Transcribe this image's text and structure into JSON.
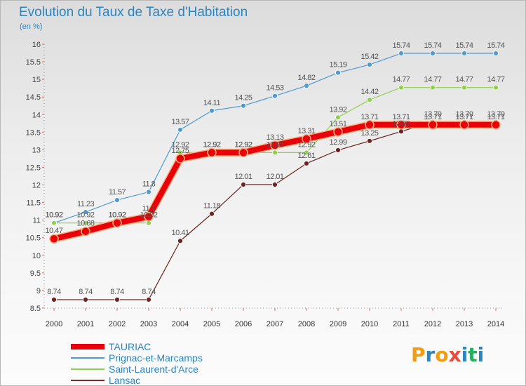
{
  "header": {
    "title": "Evolution du Taux de Taxe d'Habitation",
    "subtitle": "(en %)"
  },
  "brand": {
    "text": "ProXiti",
    "letters": [
      "P",
      "r",
      "o",
      "x",
      "i",
      "t",
      "i"
    ],
    "colors": [
      "#f39c12",
      "#2e86c1",
      "#f39c12",
      "#e74c3c",
      "#2e86c1",
      "#27ae60",
      "#2e86c1"
    ]
  },
  "chart_data": {
    "type": "line",
    "title": "Evolution du Taux de Taxe d'Habitation",
    "subtitle": "(en %)",
    "xlabel": "",
    "ylabel": "",
    "x": [
      2000,
      2001,
      2002,
      2003,
      2004,
      2005,
      2006,
      2007,
      2008,
      2009,
      2010,
      2011,
      2012,
      2013,
      2014
    ],
    "ylim": [
      8.5,
      16
    ],
    "yticks": [
      8.5,
      9,
      9.5,
      10,
      10.5,
      11,
      11.5,
      12,
      12.5,
      13,
      13.5,
      14,
      14.5,
      15,
      15.5,
      16
    ],
    "ytick_labels": [
      "8.5",
      "9",
      "9.5",
      "10",
      "10.5",
      "11",
      "11.5",
      "12",
      "12.5",
      "13",
      "13.5",
      "14",
      "14.5",
      "15",
      "15.5",
      "16"
    ],
    "grid": "none",
    "legend_position": "bottom-left",
    "series": [
      {
        "name": "TAURIAC",
        "color": "#e8000b",
        "values": [
          10.47,
          10.68,
          10.92,
          11.1,
          12.75,
          12.92,
          12.92,
          13.13,
          13.31,
          13.51,
          13.71,
          13.71,
          13.71,
          13.71,
          13.71
        ],
        "labels": [
          "10.47",
          "10.68",
          "10.92",
          "11.1",
          "12.75",
          "12.92",
          "12.92",
          "13.13",
          "13.31",
          "13.51",
          "13.71",
          "13.71",
          "13.71",
          "13.71",
          "13.71"
        ]
      },
      {
        "name": "Prignac-et-Marcamps",
        "color": "#4f9bd0",
        "values": [
          10.92,
          11.23,
          11.57,
          11.8,
          13.57,
          14.11,
          14.25,
          14.53,
          14.82,
          15.19,
          15.42,
          15.74,
          15.74,
          15.74,
          15.74
        ],
        "labels": [
          "10.92",
          "11.23",
          "11.57",
          "11.8",
          "13.57",
          "14.11",
          "14.25",
          "14.53",
          "14.82",
          "15.19",
          "15.42",
          "15.74",
          "15.74",
          "15.74",
          "15.74"
        ]
      },
      {
        "name": "Saint-Laurent-d'Arce",
        "color": "#8fd14f",
        "values": [
          10.92,
          10.92,
          10.92,
          10.92,
          12.92,
          12.92,
          12.92,
          12.92,
          12.92,
          13.92,
          14.42,
          14.77,
          14.77,
          14.77,
          14.77
        ],
        "labels": [
          "10.92",
          "10.92",
          "10.92",
          "10.92",
          "12.92",
          "12.92",
          "12.92",
          "12.92",
          "12.92",
          "13.92",
          "14.42",
          "14.77",
          "14.77",
          "14.77",
          "14.77"
        ]
      },
      {
        "name": "Lansac",
        "color": "#7a2a2a",
        "values": [
          8.74,
          8.74,
          8.74,
          8.74,
          10.41,
          11.18,
          12.01,
          12.01,
          12.61,
          12.99,
          13.25,
          13.52,
          13.79,
          13.79,
          13.79
        ],
        "labels": [
          "8.74",
          "8.74",
          "8.74",
          "8.74",
          "10.41",
          "11.18",
          "12.01",
          "12.01",
          "12.61",
          "12.99",
          "13.25",
          "13.52",
          "13.79",
          "13.79",
          "13.79"
        ]
      }
    ]
  }
}
